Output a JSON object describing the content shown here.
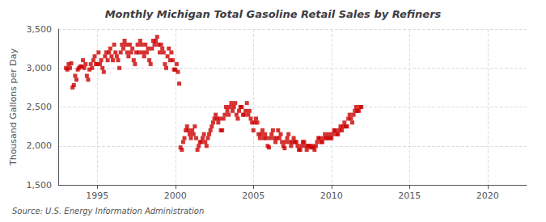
{
  "chart_data": {
    "type": "scatter",
    "title": "Monthly Michigan Total Gasoline Retail Sales by Refiners",
    "ylabel": "Thousand Gallons per Day",
    "annotations": [
      "Source: U.S. Energy Information Administration"
    ],
    "color": "#CC0000",
    "marker": "square",
    "grid": true,
    "xlim": [
      1992.5,
      2022.5
    ],
    "xticks": [
      1995,
      2000,
      2005,
      2010,
      2015,
      2020
    ],
    "ylim": [
      1500,
      3500
    ],
    "yticks": [
      {
        "value": 1500,
        "label": "1,500"
      },
      {
        "value": 2000,
        "label": "2,000"
      },
      {
        "value": 2500,
        "label": "2,500"
      },
      {
        "value": 3000,
        "label": "3,000"
      },
      {
        "value": 3500,
        "label": "3,500"
      }
    ],
    "x": [
      1993.0,
      1993.083,
      1993.167,
      1993.25,
      1993.333,
      1993.417,
      1993.5,
      1993.583,
      1993.667,
      1993.75,
      1993.833,
      1993.917,
      1994.0,
      1994.083,
      1994.167,
      1994.25,
      1994.333,
      1994.417,
      1994.5,
      1994.583,
      1994.667,
      1994.75,
      1994.833,
      1994.917,
      1995.0,
      1995.083,
      1995.167,
      1995.25,
      1995.333,
      1995.417,
      1995.5,
      1995.583,
      1995.667,
      1995.75,
      1995.833,
      1995.917,
      1996.0,
      1996.083,
      1996.167,
      1996.25,
      1996.333,
      1996.417,
      1996.5,
      1996.583,
      1996.667,
      1996.75,
      1996.833,
      1996.917,
      1997.0,
      1997.083,
      1997.167,
      1997.25,
      1997.333,
      1997.417,
      1997.5,
      1997.583,
      1997.667,
      1997.75,
      1997.833,
      1997.917,
      1998.0,
      1998.083,
      1998.167,
      1998.25,
      1998.333,
      1998.417,
      1998.5,
      1998.583,
      1998.667,
      1998.75,
      1998.833,
      1998.917,
      1999.0,
      1999.083,
      1999.167,
      1999.25,
      1999.333,
      1999.417,
      1999.5,
      1999.583,
      1999.667,
      1999.75,
      1999.833,
      1999.917,
      2000.0,
      2000.083,
      2000.167,
      2000.25,
      2000.333,
      2000.417,
      2000.5,
      2000.583,
      2000.667,
      2000.75,
      2000.833,
      2000.917,
      2001.0,
      2001.083,
      2001.167,
      2001.25,
      2001.333,
      2001.417,
      2001.5,
      2001.583,
      2001.667,
      2001.75,
      2001.833,
      2001.917,
      2002.0,
      2002.083,
      2002.167,
      2002.25,
      2002.333,
      2002.417,
      2002.5,
      2002.583,
      2002.667,
      2002.75,
      2002.833,
      2002.917,
      2003.0,
      2003.083,
      2003.167,
      2003.25,
      2003.333,
      2003.417,
      2003.5,
      2003.583,
      2003.667,
      2003.75,
      2003.833,
      2003.917,
      2004.0,
      2004.083,
      2004.167,
      2004.25,
      2004.333,
      2004.417,
      2004.5,
      2004.583,
      2004.667,
      2004.75,
      2004.833,
      2004.917,
      2005.0,
      2005.083,
      2005.167,
      2005.25,
      2005.333,
      2005.417,
      2005.5,
      2005.583,
      2005.667,
      2005.75,
      2005.833,
      2005.917,
      2006.0,
      2006.083,
      2006.167,
      2006.25,
      2006.333,
      2006.417,
      2006.5,
      2006.583,
      2006.667,
      2006.75,
      2006.833,
      2006.917,
      2007.0,
      2007.083,
      2007.167,
      2007.25,
      2007.333,
      2007.417,
      2007.5,
      2007.583,
      2007.667,
      2007.75,
      2007.833,
      2007.917,
      2008.0,
      2008.083,
      2008.167,
      2008.25,
      2008.333,
      2008.417,
      2008.5,
      2008.583,
      2008.667,
      2008.75,
      2008.833,
      2008.917,
      2009.0,
      2009.083,
      2009.167,
      2009.25,
      2009.333,
      2009.417,
      2009.5,
      2009.583,
      2009.667,
      2009.75,
      2009.833,
      2009.917,
      2010.0,
      2010.083,
      2010.167,
      2010.25,
      2010.333,
      2010.417,
      2010.5,
      2010.583,
      2010.667,
      2010.75,
      2010.833,
      2010.917,
      2011.0,
      2011.083,
      2011.167,
      2011.25,
      2011.333,
      2011.417,
      2011.5,
      2011.583,
      2011.667,
      2011.75,
      2011.833,
      2011.917
    ],
    "values": [
      3000,
      2980,
      3050,
      3000,
      3060,
      2750,
      2780,
      2900,
      2850,
      2980,
      3000,
      3020,
      3020,
      3100,
      3000,
      3050,
      2900,
      2850,
      2980,
      3050,
      3000,
      3100,
      3150,
      3050,
      3050,
      3200,
      3050,
      3100,
      3000,
      2950,
      3150,
      3200,
      3100,
      3200,
      3250,
      3150,
      3100,
      3300,
      3200,
      3150,
      3100,
      3000,
      3200,
      3300,
      3250,
      3350,
      3300,
      3200,
      3150,
      3300,
      3200,
      3250,
      3100,
      3050,
      3200,
      3300,
      3200,
      3350,
      3300,
      3200,
      3150,
      3300,
      3200,
      3250,
      3100,
      3050,
      3250,
      3350,
      3300,
      3350,
      3400,
      3300,
      3200,
      3300,
      3250,
      3200,
      3050,
      3000,
      3150,
      3250,
      3100,
      3200,
      3100,
      2980,
      2980,
      3050,
      2950,
      2800,
      1980,
      1950,
      2050,
      2100,
      2200,
      2250,
      2200,
      2150,
      2100,
      2200,
      2150,
      2250,
      2100,
      1950,
      2000,
      2050,
      2050,
      2100,
      2150,
      2050,
      2000,
      2100,
      2150,
      2200,
      2250,
      2300,
      2350,
      2400,
      2350,
      2300,
      2350,
      2200,
      2200,
      2350,
      2400,
      2500,
      2450,
      2400,
      2500,
      2550,
      2450,
      2500,
      2550,
      2400,
      2350,
      2450,
      2500,
      2500,
      2400,
      2400,
      2450,
      2550,
      2400,
      2450,
      2350,
      2300,
      2200,
      2300,
      2350,
      2300,
      2150,
      2100,
      2150,
      2200,
      2100,
      2150,
      2100,
      2000,
      1980,
      2100,
      2150,
      2200,
      2100,
      2050,
      2100,
      2200,
      2100,
      2150,
      2050,
      2000,
      1970,
      2050,
      2100,
      2150,
      2050,
      2000,
      2050,
      2100,
      2050,
      2050,
      2000,
      1950,
      1950,
      2000,
      2050,
      2050,
      2000,
      1950,
      2000,
      2000,
      1980,
      2000,
      1980,
      1950,
      2000,
      2050,
      2100,
      2100,
      2050,
      2050,
      2100,
      2150,
      2100,
      2100,
      2150,
      2100,
      2100,
      2150,
      2200,
      2200,
      2150,
      2150,
      2200,
      2250,
      2200,
      2250,
      2300,
      2250,
      2250,
      2350,
      2400,
      2350,
      2300,
      2400,
      2450,
      2500,
      2450,
      2450,
      2500,
      2500
    ]
  }
}
